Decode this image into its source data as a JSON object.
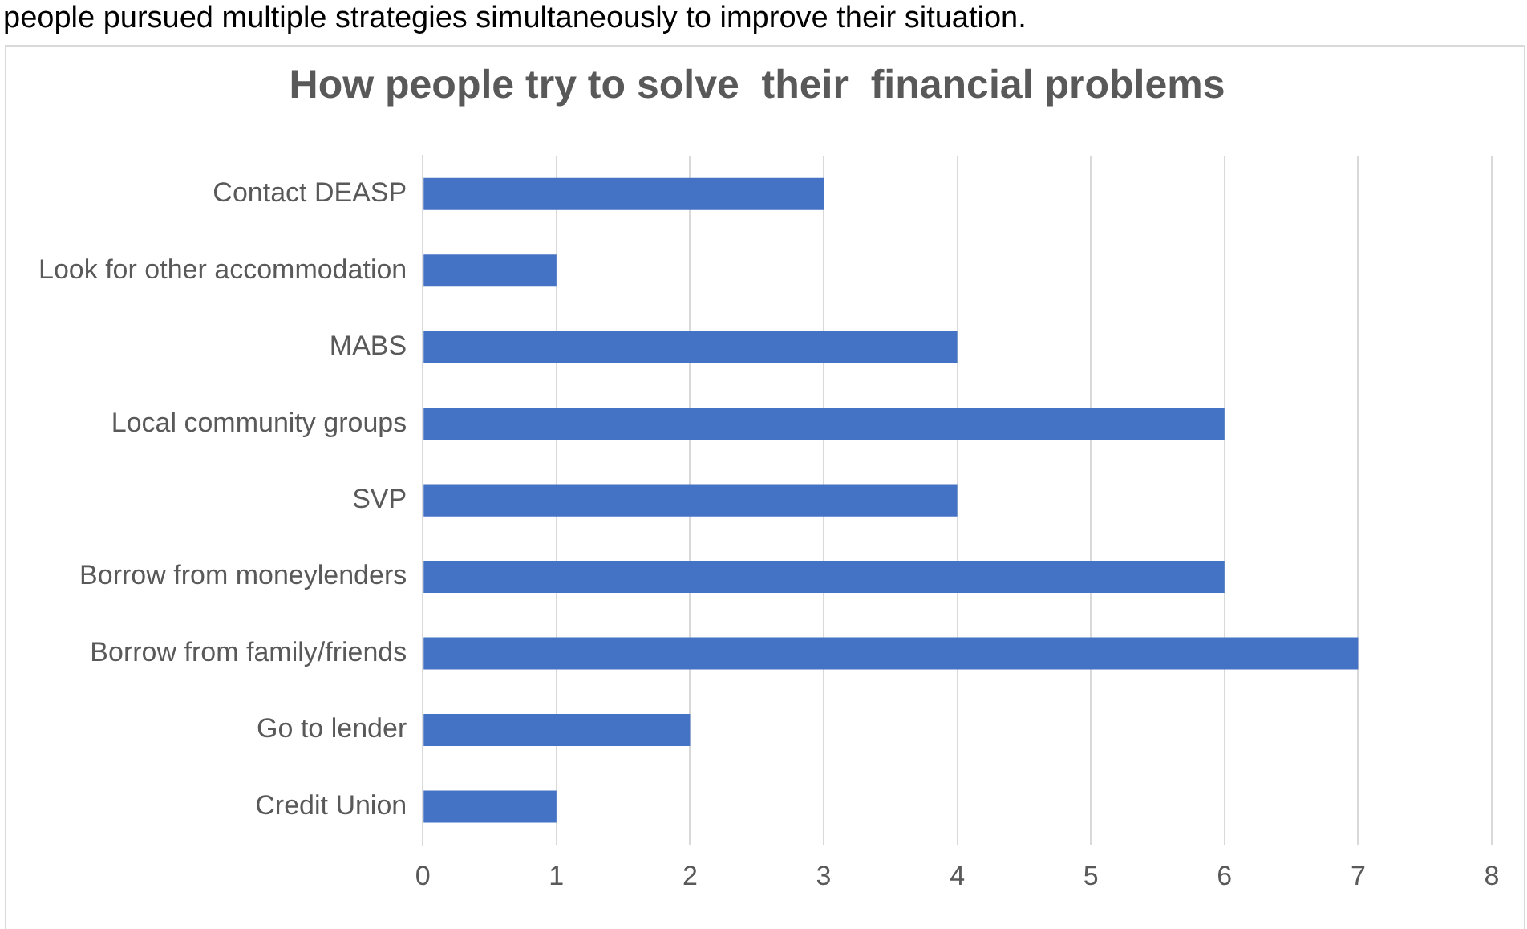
{
  "chart_data": {
    "type": "bar",
    "orientation": "horizontal",
    "title": "How people try to solve  their  financial problems",
    "annotations": [
      "people pursued multiple strategies simultaneously to improve their situation."
    ],
    "categories": [
      "Contact DEASP",
      "Look for other accommodation",
      "MABS",
      "Local community groups",
      "SVP",
      "Borrow from moneylenders",
      "Borrow from family/friends",
      "Go to lender",
      "Credit Union"
    ],
    "values": [
      3,
      1,
      4,
      6,
      4,
      6,
      7,
      2,
      1
    ],
    "color": "#4472c4",
    "xlim": [
      0,
      8
    ],
    "xticks": [
      0,
      1,
      2,
      3,
      4,
      5,
      6,
      7,
      8
    ],
    "grid": "x",
    "legend": false
  }
}
